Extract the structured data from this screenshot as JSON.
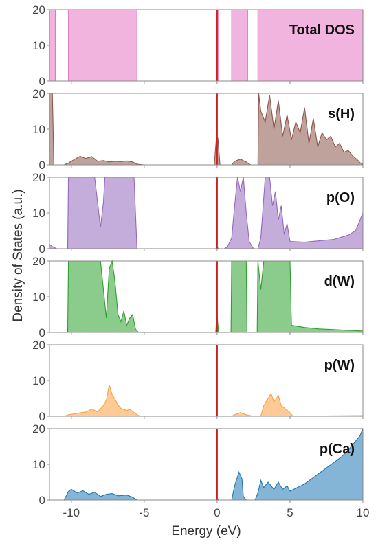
{
  "chart_data": {
    "type": "area",
    "xlabel": "Energy (eV)",
    "ylabel": "Density of States (a.u.)",
    "xlim": [
      -11.5,
      10
    ],
    "xticks": [
      -10,
      -5,
      0,
      5,
      10
    ],
    "fermi_level": 0,
    "fermi_color": "#cc2222",
    "panels": [
      {
        "label": "Total DOS",
        "color": "#e377c2",
        "ylim": [
          0,
          20
        ],
        "yticks": [
          0,
          10,
          20
        ],
        "points": [
          [
            -11.5,
            20
          ],
          [
            -11.1,
            20
          ],
          [
            -11.1,
            0
          ],
          [
            -10.2,
            0
          ],
          [
            -10.2,
            20
          ],
          [
            -5.5,
            20
          ],
          [
            -5.5,
            0
          ],
          [
            -0.05,
            0
          ],
          [
            -0.05,
            20
          ],
          [
            0.1,
            20
          ],
          [
            0.1,
            0
          ],
          [
            1.0,
            0
          ],
          [
            1.0,
            20
          ],
          [
            2.1,
            20
          ],
          [
            2.1,
            0
          ],
          [
            2.8,
            0
          ],
          [
            2.8,
            20
          ],
          [
            10,
            20
          ],
          [
            10,
            0
          ]
        ]
      },
      {
        "label": "s(H)",
        "color": "#8c564b",
        "ylim": [
          0,
          20
        ],
        "yticks": [
          0,
          10,
          20
        ],
        "points": [
          [
            -11.5,
            20
          ],
          [
            -11.3,
            20
          ],
          [
            -11.2,
            0
          ],
          [
            -10.5,
            0
          ],
          [
            -10.2,
            0.5
          ],
          [
            -9.8,
            1.5
          ],
          [
            -9.4,
            2.4
          ],
          [
            -9.0,
            1.8
          ],
          [
            -8.6,
            2.3
          ],
          [
            -8.2,
            1.0
          ],
          [
            -7.8,
            1.2
          ],
          [
            -7.4,
            0.8
          ],
          [
            -7.0,
            1.0
          ],
          [
            -6.6,
            0.9
          ],
          [
            -6.2,
            1.1
          ],
          [
            -5.8,
            0.8
          ],
          [
            -5.5,
            0.2
          ],
          [
            -5.0,
            0
          ],
          [
            -0.2,
            0
          ],
          [
            -0.05,
            7.5
          ],
          [
            0.05,
            7.5
          ],
          [
            0.2,
            0
          ],
          [
            1.0,
            0
          ],
          [
            1.2,
            1.0
          ],
          [
            1.6,
            1.6
          ],
          [
            2.0,
            0.8
          ],
          [
            2.3,
            0
          ],
          [
            2.8,
            0
          ],
          [
            2.85,
            20
          ],
          [
            3.0,
            15
          ],
          [
            3.3,
            12
          ],
          [
            3.6,
            19.5
          ],
          [
            3.9,
            10
          ],
          [
            4.2,
            18
          ],
          [
            4.5,
            8
          ],
          [
            4.8,
            14
          ],
          [
            5.1,
            7
          ],
          [
            5.4,
            12
          ],
          [
            5.7,
            9
          ],
          [
            6.0,
            16
          ],
          [
            6.3,
            6
          ],
          [
            6.6,
            13
          ],
          [
            6.9,
            5
          ],
          [
            7.2,
            9
          ],
          [
            7.5,
            7
          ],
          [
            7.8,
            8
          ],
          [
            8.1,
            5
          ],
          [
            8.4,
            6
          ],
          [
            8.7,
            3.5
          ],
          [
            9.0,
            4
          ],
          [
            9.3,
            2.5
          ],
          [
            9.6,
            1.5
          ],
          [
            9.8,
            0.6
          ],
          [
            10,
            0.2
          ]
        ]
      },
      {
        "label": "p(O)",
        "color": "#9467bd",
        "ylim": [
          0,
          20
        ],
        "yticks": [
          0,
          10,
          20
        ],
        "points": [
          [
            -11.5,
            1.2
          ],
          [
            -11.3,
            0.6
          ],
          [
            -11.0,
            0
          ],
          [
            -10.25,
            0
          ],
          [
            -10.2,
            20
          ],
          [
            -8.4,
            20
          ],
          [
            -8.2,
            13
          ],
          [
            -8.0,
            6
          ],
          [
            -7.8,
            13
          ],
          [
            -7.7,
            20
          ],
          [
            -5.7,
            20
          ],
          [
            -5.5,
            0
          ],
          [
            -0.1,
            0
          ],
          [
            0,
            0.5
          ],
          [
            0.1,
            0
          ],
          [
            0.5,
            0
          ],
          [
            0.7,
            0.5
          ],
          [
            1.0,
            3
          ],
          [
            1.2,
            12
          ],
          [
            1.4,
            20
          ],
          [
            1.6,
            16
          ],
          [
            1.8,
            20
          ],
          [
            2.0,
            10
          ],
          [
            2.2,
            2
          ],
          [
            2.5,
            0
          ],
          [
            2.8,
            0
          ],
          [
            3.0,
            3
          ],
          [
            3.3,
            20
          ],
          [
            3.6,
            20
          ],
          [
            3.8,
            12
          ],
          [
            4.0,
            16
          ],
          [
            4.2,
            8
          ],
          [
            4.4,
            12
          ],
          [
            4.6,
            4
          ],
          [
            4.8,
            7
          ],
          [
            5.0,
            2
          ],
          [
            6.0,
            1.8
          ],
          [
            7.0,
            2.2
          ],
          [
            8.0,
            2.6
          ],
          [
            9.0,
            3.8
          ],
          [
            9.5,
            5
          ],
          [
            10,
            10
          ]
        ]
      },
      {
        "label": "d(W)",
        "color": "#2ca02c",
        "ylim": [
          0,
          20
        ],
        "yticks": [
          0,
          10,
          20
        ],
        "points": [
          [
            -11.5,
            0
          ],
          [
            -10.25,
            0
          ],
          [
            -10.2,
            20
          ],
          [
            -8.0,
            20
          ],
          [
            -7.8,
            12
          ],
          [
            -7.6,
            4
          ],
          [
            -7.4,
            18
          ],
          [
            -7.2,
            20
          ],
          [
            -7.0,
            14
          ],
          [
            -6.8,
            5
          ],
          [
            -6.6,
            3
          ],
          [
            -6.4,
            6
          ],
          [
            -6.2,
            2
          ],
          [
            -6.0,
            4
          ],
          [
            -5.8,
            5
          ],
          [
            -5.6,
            1
          ],
          [
            -5.4,
            0
          ],
          [
            -0.1,
            0
          ],
          [
            0,
            5
          ],
          [
            0.1,
            0
          ],
          [
            0.95,
            0
          ],
          [
            1.0,
            20
          ],
          [
            2.0,
            20
          ],
          [
            2.05,
            0
          ],
          [
            2.75,
            0
          ],
          [
            2.8,
            20
          ],
          [
            3.0,
            12
          ],
          [
            3.2,
            20
          ],
          [
            5.0,
            20
          ],
          [
            5.1,
            2
          ],
          [
            6.0,
            1.4
          ],
          [
            7.0,
            1.0
          ],
          [
            8.0,
            0.8
          ],
          [
            9.0,
            0.6
          ],
          [
            10,
            0.4
          ]
        ]
      },
      {
        "label": "p(W)",
        "color": "#ff9f40",
        "ylim": [
          0,
          20
        ],
        "yticks": [
          0,
          10,
          20
        ],
        "points": [
          [
            -11.5,
            0
          ],
          [
            -10.5,
            0
          ],
          [
            -10.2,
            0.4
          ],
          [
            -9.6,
            0.8
          ],
          [
            -9.0,
            1.2
          ],
          [
            -8.6,
            2.0
          ],
          [
            -8.2,
            1.2
          ],
          [
            -7.8,
            3.0
          ],
          [
            -7.6,
            4.5
          ],
          [
            -7.4,
            8.8
          ],
          [
            -7.2,
            6.0
          ],
          [
            -7.0,
            4.8
          ],
          [
            -6.8,
            3.2
          ],
          [
            -6.6,
            2.2
          ],
          [
            -6.2,
            1.6
          ],
          [
            -6.0,
            2.0
          ],
          [
            -5.7,
            1.0
          ],
          [
            -5.4,
            0.2
          ],
          [
            -5.0,
            0
          ],
          [
            1.0,
            0
          ],
          [
            1.2,
            0.4
          ],
          [
            1.6,
            1.0
          ],
          [
            2.0,
            0.4
          ],
          [
            2.5,
            0
          ],
          [
            3.0,
            0
          ],
          [
            3.2,
            3.0
          ],
          [
            3.5,
            5.0
          ],
          [
            3.7,
            6.4
          ],
          [
            3.9,
            4.0
          ],
          [
            4.2,
            5.8
          ],
          [
            4.4,
            3.0
          ],
          [
            4.7,
            2.0
          ],
          [
            5.0,
            1.0
          ],
          [
            5.2,
            0
          ],
          [
            10,
            0.2
          ]
        ]
      },
      {
        "label": "p(Ca)",
        "color": "#1f77b4",
        "ylim": [
          0,
          20
        ],
        "yticks": [
          0,
          10,
          20
        ],
        "points": [
          [
            -11.5,
            0
          ],
          [
            -10.5,
            0
          ],
          [
            -10.2,
            2.4
          ],
          [
            -10.0,
            3.0
          ],
          [
            -9.6,
            2.0
          ],
          [
            -9.2,
            2.6
          ],
          [
            -8.8,
            1.6
          ],
          [
            -8.4,
            2.2
          ],
          [
            -8.0,
            1.0
          ],
          [
            -7.6,
            1.6
          ],
          [
            -7.2,
            1.8
          ],
          [
            -6.8,
            1.2
          ],
          [
            -6.2,
            1.4
          ],
          [
            -5.8,
            0.8
          ],
          [
            -5.5,
            0
          ],
          [
            -0.1,
            0
          ],
          [
            0,
            0.3
          ],
          [
            0.1,
            0
          ],
          [
            1.0,
            0
          ],
          [
            1.2,
            4.0
          ],
          [
            1.5,
            7.8
          ],
          [
            1.7,
            6.0
          ],
          [
            1.8,
            1.0
          ],
          [
            2.0,
            0
          ],
          [
            2.6,
            0
          ],
          [
            2.8,
            2.0
          ],
          [
            3.0,
            5.5
          ],
          [
            3.2,
            3.5
          ],
          [
            3.5,
            5.0
          ],
          [
            3.9,
            3.0
          ],
          [
            4.2,
            5.0
          ],
          [
            4.5,
            3.0
          ],
          [
            4.8,
            4.0
          ],
          [
            5.0,
            2.5
          ],
          [
            5.5,
            3.5
          ],
          [
            6.0,
            4.5
          ],
          [
            6.5,
            6.0
          ],
          [
            7.0,
            7.5
          ],
          [
            7.5,
            9.0
          ],
          [
            8.0,
            10.5
          ],
          [
            8.5,
            12.0
          ],
          [
            9.0,
            14.0
          ],
          [
            9.5,
            16.5
          ],
          [
            9.8,
            18.0
          ],
          [
            10,
            20
          ]
        ]
      }
    ]
  }
}
